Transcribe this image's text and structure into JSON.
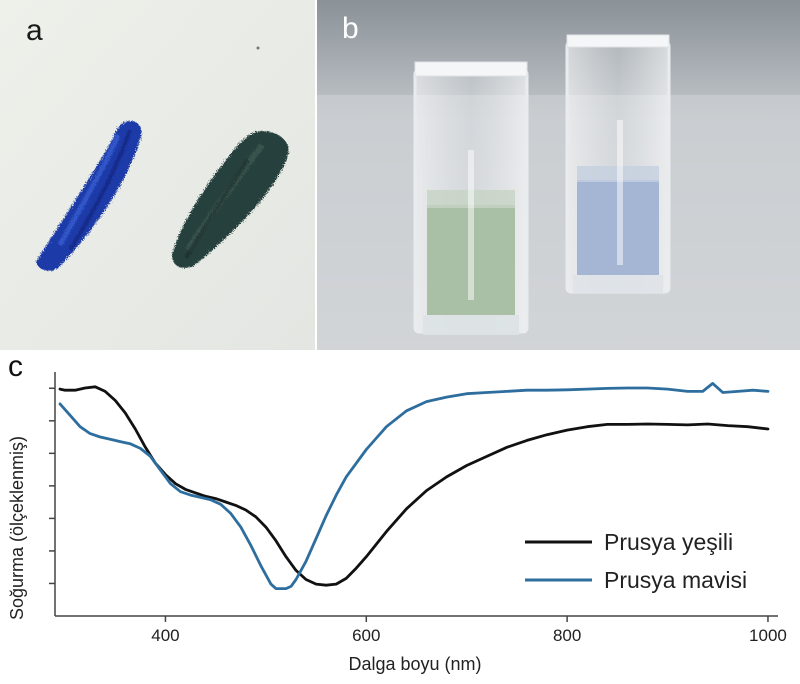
{
  "panels": {
    "a": "a",
    "b": "b",
    "c": "c"
  },
  "colors": {
    "prussian_blue_paint": "#1c3aa8",
    "prussian_green_paint": "#27403c",
    "green_solution": "#a9bfa6",
    "blue_solution": "#a4b6d4"
  },
  "chart_data": {
    "type": "line",
    "xlabel": "Dalga boyu (nm)",
    "ylabel": "Soğurma (ölçeklenmiş)",
    "xlim": [
      290,
      1010
    ],
    "ylim": [
      0,
      1.07
    ],
    "xticks": [
      400,
      600,
      800,
      1000
    ],
    "xtick_labels": [
      "400",
      "600",
      "800",
      "1000"
    ],
    "y_tick_count": 7,
    "ytick_labels_shown": false,
    "grid": false,
    "legend_position": "bottom-right",
    "series": [
      {
        "name": "Prusya yeşili",
        "color": "#111111",
        "x": [
          295,
          300,
          310,
          320,
          330,
          340,
          350,
          360,
          370,
          380,
          390,
          400,
          410,
          420,
          430,
          440,
          450,
          460,
          470,
          480,
          490,
          500,
          510,
          520,
          530,
          540,
          550,
          560,
          570,
          580,
          590,
          600,
          620,
          640,
          660,
          680,
          700,
          720,
          740,
          760,
          780,
          800,
          820,
          840,
          860,
          880,
          900,
          920,
          940,
          960,
          980,
          1000
        ],
        "y": [
          0.995,
          0.99,
          0.99,
          1.0,
          1.005,
          0.985,
          0.945,
          0.89,
          0.82,
          0.74,
          0.67,
          0.62,
          0.58,
          0.555,
          0.54,
          0.525,
          0.515,
          0.5,
          0.485,
          0.465,
          0.435,
          0.39,
          0.33,
          0.26,
          0.2,
          0.16,
          0.14,
          0.135,
          0.14,
          0.165,
          0.21,
          0.26,
          0.37,
          0.47,
          0.55,
          0.61,
          0.66,
          0.7,
          0.74,
          0.77,
          0.795,
          0.815,
          0.83,
          0.84,
          0.84,
          0.842,
          0.84,
          0.838,
          0.842,
          0.835,
          0.83,
          0.82
        ]
      },
      {
        "name": "Prusya mavisi",
        "color": "#2d6e9e",
        "x": [
          295,
          305,
          315,
          325,
          335,
          345,
          355,
          365,
          375,
          385,
          395,
          405,
          415,
          425,
          435,
          445,
          455,
          465,
          475,
          485,
          495,
          505,
          510,
          515,
          520,
          525,
          530,
          540,
          550,
          560,
          570,
          580,
          600,
          620,
          640,
          660,
          680,
          700,
          720,
          740,
          760,
          780,
          800,
          820,
          840,
          860,
          880,
          900,
          920,
          935,
          945,
          955,
          970,
          985,
          1000
        ],
        "y": [
          0.93,
          0.88,
          0.83,
          0.8,
          0.785,
          0.775,
          0.765,
          0.755,
          0.735,
          0.7,
          0.64,
          0.58,
          0.545,
          0.53,
          0.52,
          0.51,
          0.49,
          0.45,
          0.39,
          0.31,
          0.22,
          0.14,
          0.12,
          0.12,
          0.12,
          0.13,
          0.16,
          0.24,
          0.34,
          0.44,
          0.53,
          0.61,
          0.73,
          0.83,
          0.9,
          0.94,
          0.96,
          0.975,
          0.98,
          0.985,
          0.99,
          0.99,
          0.992,
          0.995,
          0.998,
          1.0,
          1.0,
          0.995,
          0.985,
          0.985,
          1.02,
          0.98,
          0.985,
          0.99,
          0.985
        ]
      }
    ]
  }
}
